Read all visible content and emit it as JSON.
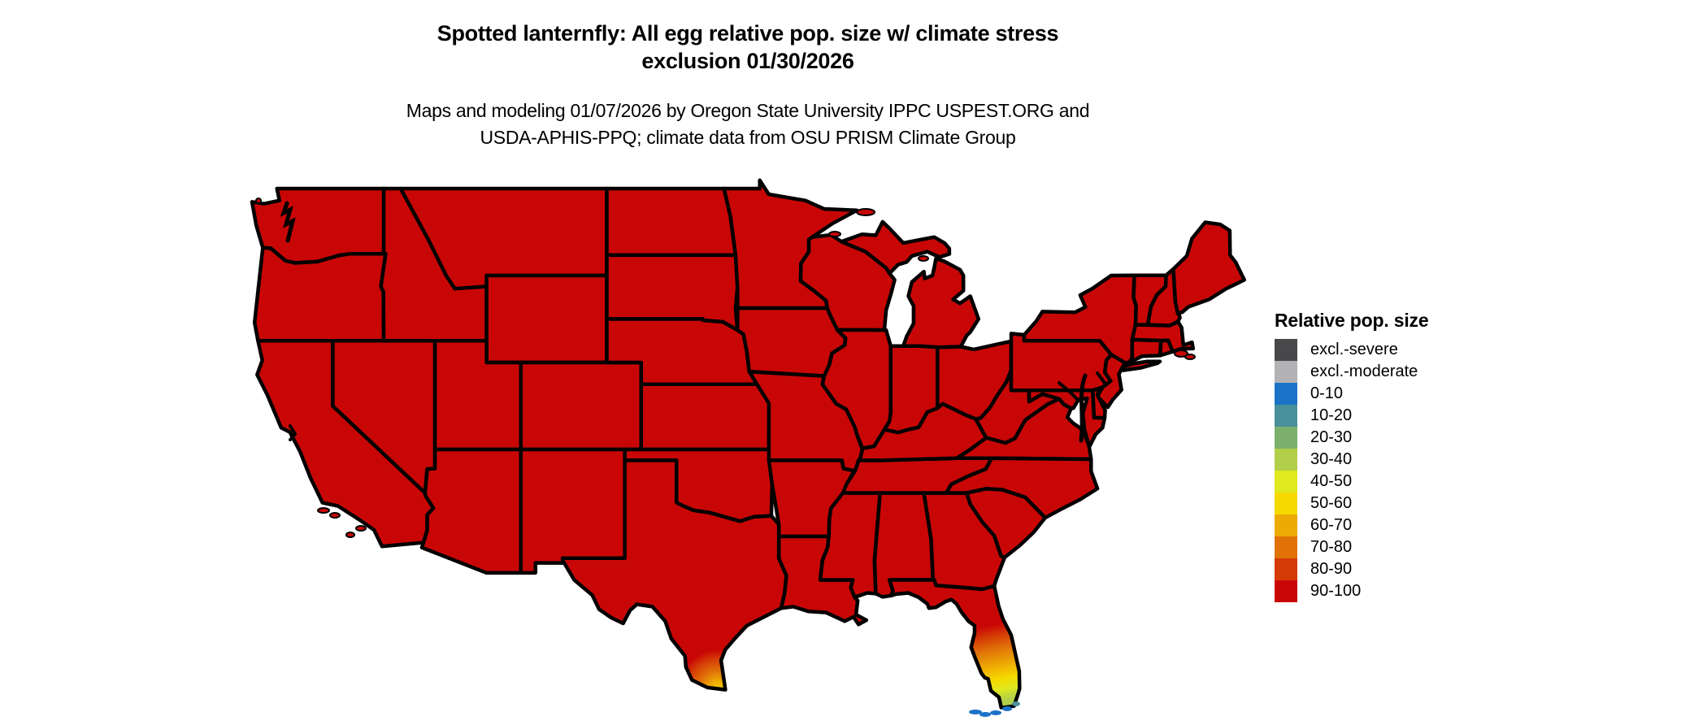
{
  "title": {
    "line1": "Spotted lanternfly: All egg relative pop. size w/ climate stress",
    "line2": "exclusion 01/30/2026"
  },
  "subtitle": {
    "line1": "Maps and modeling 01/07/2026 by Oregon State University IPPC USPEST.ORG and",
    "line2": "USDA-APHIS-PPQ; climate data from OSU PRISM Climate Group"
  },
  "legend": {
    "title": "Relative pop. size",
    "items": [
      {
        "label": "excl.-severe",
        "color": "#48484a"
      },
      {
        "label": "excl.-moderate",
        "color": "#b2b2b4"
      },
      {
        "label": "0-10",
        "color": "#1b73c8"
      },
      {
        "label": "10-20",
        "color": "#4a909a"
      },
      {
        "label": "20-30",
        "color": "#7cb06c"
      },
      {
        "label": "30-40",
        "color": "#b2cf4a"
      },
      {
        "label": "40-50",
        "color": "#e0e81e"
      },
      {
        "label": "50-60",
        "color": "#f6d900"
      },
      {
        "label": "60-70",
        "color": "#eeaa04"
      },
      {
        "label": "70-80",
        "color": "#e07208"
      },
      {
        "label": "80-90",
        "color": "#d43a05"
      },
      {
        "label": "90-100",
        "color": "#c90606"
      }
    ]
  },
  "map_data": {
    "type": "choropleth",
    "region": "Contiguous United States (lower 48 states)",
    "border_color": "#000000",
    "background": "#ffffff",
    "base_value": "90-100",
    "base_color": "#c90606",
    "anomalies": [
      {
        "region": "South Florida peninsula",
        "values": "gradient 90-100 down to 30-40 toward the southern tip"
      },
      {
        "region": "Florida Keys",
        "values": "0-10 and 10-20"
      },
      {
        "region": "South Texas (Rio Grande Valley tip)",
        "values": "gradient 90-100 down to 50-60 at the tip"
      }
    ],
    "florida_gradient_buckets": [
      "90-100",
      "80-90",
      "70-80",
      "60-70",
      "50-60",
      "40-50",
      "30-40"
    ],
    "texas_tip_buckets": [
      "90-100",
      "80-90",
      "70-80",
      "60-70",
      "50-60"
    ],
    "keys_buckets": [
      "0-10",
      "10-20"
    ]
  }
}
